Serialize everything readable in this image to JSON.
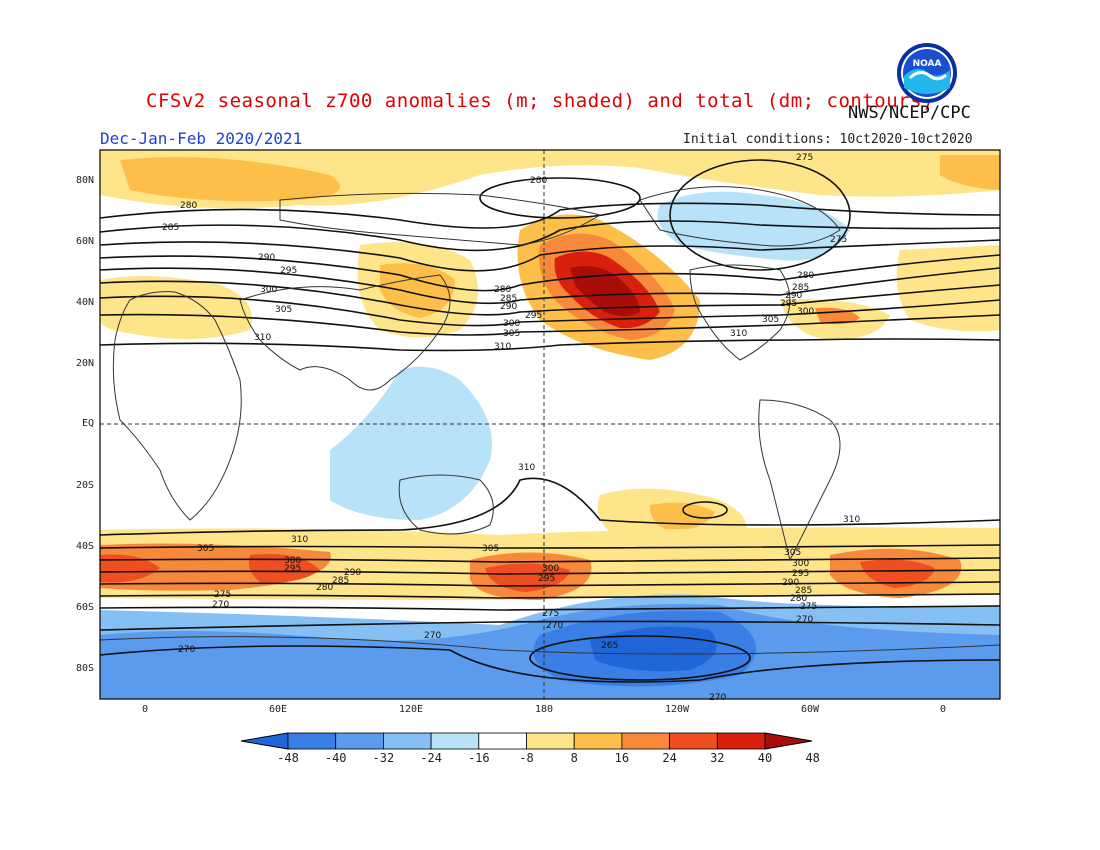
{
  "header": {
    "title": "CFSv2 seasonal z700 anomalies (m; shaded) and total (dm; contours)",
    "agency": "NWS/NCEP/CPC",
    "period": "Dec-Jan-Feb 2020/2021",
    "initial_conditions": "Initial conditions: 10ct2020-10ct2020",
    "logo_text": "NOAA"
  },
  "axes": {
    "lat_labels": [
      "80N",
      "60N",
      "40N",
      "20N",
      "EQ",
      "20S",
      "40S",
      "60S",
      "80S"
    ],
    "lon_labels": [
      "0",
      "60E",
      "120E",
      "180",
      "120W",
      "60W",
      "0"
    ]
  },
  "colorbar": {
    "ticks": [
      "-48",
      "-40",
      "-32",
      "-24",
      "-16",
      "-8",
      "8",
      "16",
      "24",
      "32",
      "40",
      "48"
    ],
    "colors": [
      "#2166d8",
      "#3a7fe6",
      "#5a9bee",
      "#86bff4",
      "#b7e2f7",
      "#ffffff",
      "#ffe58a",
      "#fdbe4a",
      "#f7893a",
      "#ee4e20",
      "#d8200c",
      "#a80d08"
    ]
  },
  "contour_labels": [
    "275",
    "280",
    "285",
    "290",
    "295",
    "300",
    "305",
    "310",
    "275",
    "270",
    "265",
    "275",
    "280",
    "285",
    "290",
    "295",
    "300",
    "305",
    "310"
  ]
}
